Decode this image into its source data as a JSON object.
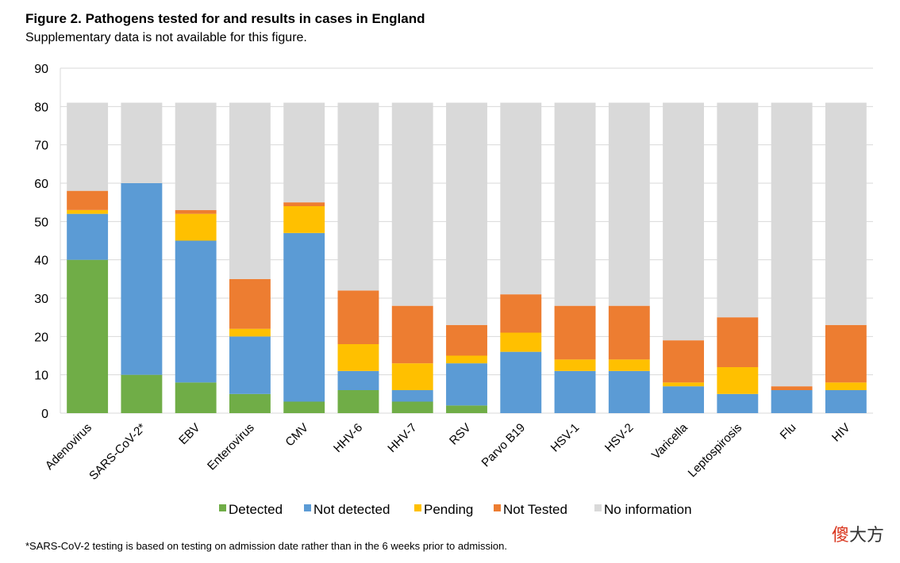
{
  "header": {
    "title": "Figure 2. Pathogens tested for and results in cases in England",
    "subtitle": "Supplementary data is not available for this figure."
  },
  "footnote": "*SARS-CoV-2 testing is based on testing on admission date rather than in the 6 weeks prior to admission.",
  "watermark": {
    "part1": "傻",
    "part2": "大方"
  },
  "chart_data": {
    "type": "bar",
    "stacked": true,
    "title": "Figure 2. Pathogens tested for and results in cases in England",
    "subtitle": "Supplementary data is not available for this figure.",
    "xlabel": "",
    "ylabel": "",
    "ylim": [
      0,
      90
    ],
    "yticks": [
      0,
      10,
      20,
      30,
      40,
      50,
      60,
      70,
      80,
      90
    ],
    "grid": true,
    "legend_position": "bottom",
    "categories": [
      "Adenovirus",
      "SARS-CoV-2*",
      "EBV",
      "Enterovirus",
      "CMV",
      "HHV-6",
      "HHV-7",
      "RSV",
      "Parvo B19",
      "HSV-1",
      "HSV-2",
      "Varicella",
      "Leptospirosis",
      "Flu",
      "HIV"
    ],
    "series": [
      {
        "name": "Detected",
        "color": "#70ad47",
        "values": [
          40,
          10,
          8,
          5,
          3,
          6,
          3,
          2,
          0,
          0,
          0,
          0,
          0,
          0,
          0
        ]
      },
      {
        "name": "Not detected",
        "color": "#5b9bd5",
        "values": [
          12,
          50,
          37,
          15,
          44,
          5,
          3,
          11,
          16,
          11,
          11,
          7,
          5,
          6,
          6
        ]
      },
      {
        "name": "Pending",
        "color": "#ffc000",
        "values": [
          1,
          0,
          7,
          2,
          7,
          7,
          7,
          2,
          5,
          3,
          3,
          1,
          7,
          0,
          2
        ]
      },
      {
        "name": "Not Tested",
        "color": "#ed7d31",
        "values": [
          5,
          0,
          1,
          13,
          1,
          14,
          15,
          8,
          10,
          14,
          14,
          11,
          13,
          1,
          15
        ]
      },
      {
        "name": "No information",
        "color": "#d9d9d9",
        "values": [
          23,
          21,
          28,
          46,
          26,
          49,
          53,
          58,
          50,
          53,
          53,
          62,
          56,
          74,
          58
        ]
      }
    ]
  }
}
